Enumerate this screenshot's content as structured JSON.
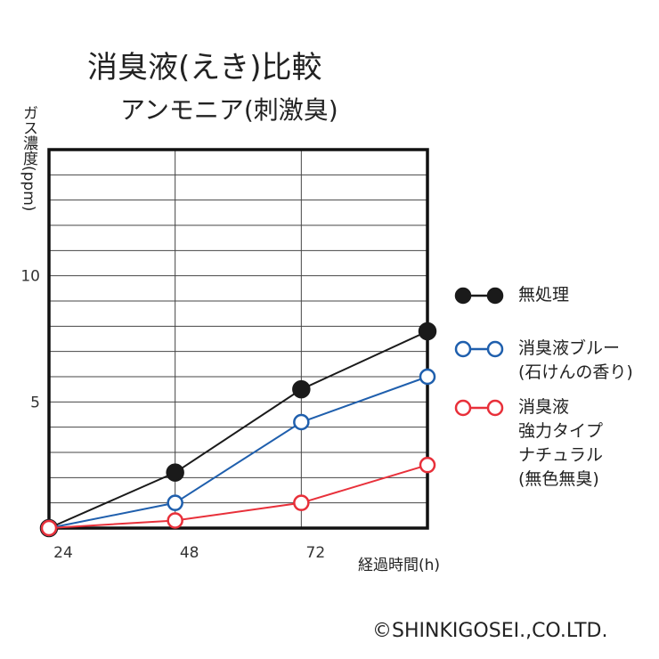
{
  "chart_data": {
    "type": "line",
    "title": "消臭液(えき)比較",
    "subtitle": "アンモニア(刺激臭)",
    "y_label": "ガス濃度(ppm)",
    "x_label": "経過時間(h)",
    "annotation": "©SHINKIGOSEI.,CO.LTD.",
    "x": [
      24,
      48,
      72,
      96
    ],
    "xlim": [
      24,
      96
    ],
    "xticks": [
      24,
      48,
      72
    ],
    "ylim": [
      0,
      15
    ],
    "yticks": [
      5,
      10
    ],
    "y_grid": [
      1,
      2,
      3,
      4,
      5,
      6,
      7,
      8,
      9,
      10,
      11,
      12,
      13,
      14
    ],
    "x_grid": [
      48,
      72
    ],
    "series": [
      {
        "name": "無処理",
        "color": "#1a1a1a",
        "marker": "filled",
        "values": [
          0,
          2.2,
          5.5,
          7.8
        ]
      },
      {
        "name": "消臭液ブルー\n(石けんの香り)",
        "color": "#1f5fad",
        "marker": "open",
        "values": [
          0,
          1.0,
          4.2,
          6.0
        ]
      },
      {
        "name": "消臭液\n強力タイプ\nナチュラル\n(無色無臭)",
        "color": "#e8303a",
        "marker": "open",
        "values": [
          0,
          0.3,
          1.0,
          2.5
        ]
      }
    ]
  }
}
